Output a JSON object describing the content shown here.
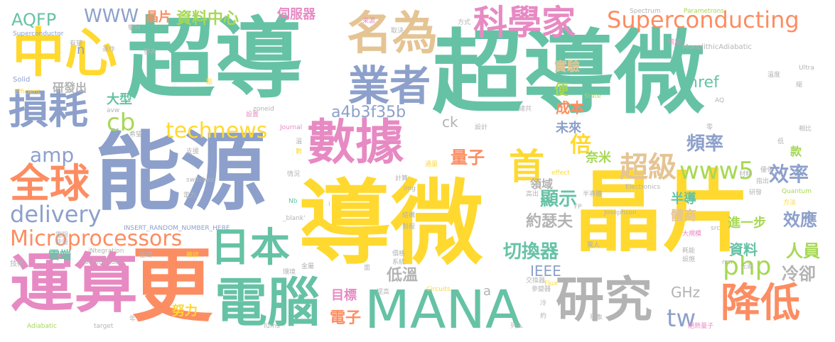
{
  "palette": {
    "teal": "#66c2a5",
    "orange": "#fc8d62",
    "blue": "#8da0cb",
    "pink": "#e78ac3",
    "green": "#a6d854",
    "yellow": "#ffd92f",
    "tan": "#e5c494",
    "gray": "#b3b3b3"
  },
  "words": [
    {
      "text": "超導微",
      "color": "teal"
    },
    {
      "text": "超導",
      "color": "teal"
    },
    {
      "text": "晶片",
      "color": "yellow"
    },
    {
      "text": "導微",
      "color": "yellow"
    },
    {
      "text": "能源",
      "color": "blue"
    },
    {
      "text": "中心",
      "color": "yellow"
    },
    {
      "text": "更",
      "color": "orange"
    },
    {
      "text": "運算",
      "color": "pink"
    },
    {
      "text": "MANA",
      "color": "teal"
    },
    {
      "text": "數據",
      "color": "pink"
    },
    {
      "text": "名為",
      "color": "tan"
    },
    {
      "text": "科學家",
      "color": "pink"
    },
    {
      "text": "電腦",
      "color": "teal"
    },
    {
      "text": "研究",
      "color": "gray"
    },
    {
      "text": "業者",
      "color": "blue"
    },
    {
      "text": "損耗",
      "color": "blue"
    },
    {
      "text": "全球",
      "color": "orange"
    },
    {
      "text": "Superconducting",
      "color": "orange"
    },
    {
      "text": "Microprocessors",
      "color": "orange"
    },
    {
      "text": "降低",
      "color": "orange"
    },
    {
      "text": "日本",
      "color": "teal"
    },
    {
      "text": "technews",
      "color": "yellow"
    },
    {
      "text": "delivery",
      "color": "blue"
    },
    {
      "text": "首",
      "color": "yellow"
    },
    {
      "text": "www5",
      "color": "green"
    },
    {
      "text": "超級",
      "color": "tan"
    },
    {
      "text": "倍",
      "color": "yellow"
    },
    {
      "text": "cb",
      "color": "green"
    },
    {
      "text": "amp",
      "color": "blue"
    },
    {
      "text": "php",
      "color": "green"
    },
    {
      "text": "tw",
      "color": "blue"
    },
    {
      "text": "WWW",
      "color": "blue"
    },
    {
      "text": "AQFP",
      "color": "teal"
    },
    {
      "text": "資料中心",
      "color": "green"
    },
    {
      "text": "晶片",
      "color": "orange"
    },
    {
      "text": "伺服器",
      "color": "pink"
    },
    {
      "text": "效率",
      "color": "blue"
    },
    {
      "text": "量子",
      "color": "orange"
    },
    {
      "text": "頻率",
      "color": "blue"
    },
    {
      "text": "a4b3f35b",
      "color": "blue"
    },
    {
      "text": "切換器",
      "color": "teal"
    },
    {
      "text": "顯示",
      "color": "teal"
    },
    {
      "text": "約瑟夫",
      "color": "gray"
    },
    {
      "text": "資料",
      "color": "teal"
    },
    {
      "text": "效應",
      "color": "blue"
    },
    {
      "text": "人員",
      "color": "green"
    },
    {
      "text": "冷卻",
      "color": "gray"
    },
    {
      "text": "成本",
      "color": "orange"
    },
    {
      "text": "未來",
      "color": "blue"
    },
    {
      "text": "實驗",
      "color": "tan"
    },
    {
      "text": "便",
      "color": "green"
    },
    {
      "text": "大型",
      "color": "teal"
    },
    {
      "text": "研發出",
      "color": "gray"
    },
    {
      "text": "n",
      "color": "blue"
    },
    {
      "text": "href",
      "color": "teal"
    },
    {
      "text": "低溫",
      "color": "gray"
    },
    {
      "text": "電子",
      "color": "orange"
    },
    {
      "text": "目標",
      "color": "pink"
    },
    {
      "text": "努力",
      "color": "yellow"
    },
    {
      "text": "IEEE",
      "color": "blue"
    },
    {
      "text": "GHz",
      "color": "gray"
    },
    {
      "text": "雲端",
      "color": "teal"
    },
    {
      "text": "進一步",
      "color": "green"
    },
    {
      "text": "半導",
      "color": "teal"
    },
    {
      "text": "體商",
      "color": "tan"
    },
    {
      "text": "領域",
      "color": "gray"
    },
    {
      "text": "奈米",
      "color": "green"
    },
    {
      "text": "款",
      "color": "green"
    },
    {
      "text": "ck",
      "color": "gray"
    },
    {
      "text": "a",
      "color": "gray"
    },
    {
      "text": "Spectrum",
      "color": "gray"
    },
    {
      "text": "Parametrons",
      "color": "green"
    },
    {
      "text": "MonolithicAdiabatic",
      "color": "gray"
    },
    {
      "text": "Superconductor",
      "color": "blue"
    },
    {
      "text": "Solid",
      "color": "blue"
    },
    {
      "text": "Efficient",
      "color": "yellow"
    },
    {
      "text": "State",
      "color": "green"
    },
    {
      "text": "Josephson",
      "color": "gray"
    },
    {
      "text": "Quantum",
      "color": "green"
    },
    {
      "text": "Electronics",
      "color": "gray"
    },
    {
      "text": "effect",
      "color": "yellow"
    },
    {
      "text": "switches",
      "color": "gray"
    },
    {
      "text": "INSERT_RANDOM_NUMBER_HERE",
      "color": "blue"
    },
    {
      "text": "_blank'",
      "color": "gray"
    },
    {
      "text": "iNtegration",
      "color": "gray"
    },
    {
      "text": "Architecture",
      "color": "gray"
    },
    {
      "text": "Circuits",
      "color": "yellow"
    },
    {
      "text": "Adiabatic",
      "color": "green"
    },
    {
      "text": "target",
      "color": "gray"
    },
    {
      "text": "Turns",
      "color": "gray"
    },
    {
      "text": "Flux",
      "color": "yellow"
    },
    {
      "text": "zoneid",
      "color": "gray"
    },
    {
      "text": "Journal",
      "color": "pink"
    },
    {
      "text": "avw",
      "color": "gray"
    },
    {
      "text": "src",
      "color": "gray"
    },
    {
      "text": "nm",
      "color": "gray"
    },
    {
      "text": "FP",
      "color": "gray"
    },
    {
      "text": "Nb",
      "color": "teal"
    },
    {
      "text": "img",
      "color": "gray"
    },
    {
      "text": "AQ",
      "color": "gray"
    },
    {
      "text": "Ultra",
      "color": "gray"
    },
    {
      "text": "技術",
      "color": "gray"
    },
    {
      "text": "能量",
      "color": "gray"
    },
    {
      "text": "提高",
      "color": "gray"
    },
    {
      "text": "取決",
      "color": "gray"
    },
    {
      "text": "來源",
      "color": "pink"
    },
    {
      "text": "方式",
      "color": "gray"
    },
    {
      "text": "增加",
      "color": "pink"
    },
    {
      "text": "溫度",
      "color": "gray"
    },
    {
      "text": "相比",
      "color": "gray"
    },
    {
      "text": "優化",
      "color": "gray"
    },
    {
      "text": "材料",
      "color": "gray"
    },
    {
      "text": "研發",
      "color": "gray"
    },
    {
      "text": "方法",
      "color": "yellow"
    },
    {
      "text": "指出",
      "color": "gray"
    },
    {
      "text": "高出",
      "color": "gray"
    },
    {
      "text": "半導體",
      "color": "gray"
    },
    {
      "text": "大規模",
      "color": "pink"
    },
    {
      "text": "驚人",
      "color": "gray"
    },
    {
      "text": "耗能",
      "color": "gray"
    },
    {
      "text": "設施",
      "color": "gray"
    },
    {
      "text": "先進",
      "color": "gray"
    },
    {
      "text": "交換器",
      "color": "gray"
    },
    {
      "text": "參變器",
      "color": "gray"
    },
    {
      "text": "絕熱量子",
      "color": "pink"
    },
    {
      "text": "現象",
      "color": "gray"
    },
    {
      "text": "列入",
      "color": "gray"
    },
    {
      "text": "約",
      "color": "gray"
    },
    {
      "text": "冷",
      "color": "gray"
    },
    {
      "text": "價格",
      "color": "gray"
    },
    {
      "text": "系統",
      "color": "gray"
    },
    {
      "text": "結構",
      "color": "gray"
    },
    {
      "text": "製程",
      "color": "gray"
    },
    {
      "text": "金屬",
      "color": "gray"
    },
    {
      "text": "環境",
      "color": "gray"
    },
    {
      "text": "雜誌",
      "color": "yellow"
    },
    {
      "text": "基礎",
      "color": "gray"
    },
    {
      "text": "電阻",
      "color": "gray"
    },
    {
      "text": "有望",
      "color": "gray"
    },
    {
      "text": "運作",
      "color": "gray"
    },
    {
      "text": "發表",
      "color": "gray"
    },
    {
      "text": "攀升",
      "color": "gray"
    },
    {
      "text": "設置",
      "color": "pink"
    },
    {
      "text": "希望",
      "color": "gray"
    },
    {
      "text": "支援",
      "color": "gray"
    },
    {
      "text": "情況",
      "color": "gray"
    },
    {
      "text": "計算",
      "color": "gray"
    },
    {
      "text": "通量",
      "color": "yellow"
    },
    {
      "text": "電力",
      "color": "gray"
    },
    {
      "text": "點",
      "color": "yellow"
    },
    {
      "text": "數",
      "color": "yellow"
    },
    {
      "text": "溫",
      "color": "gray"
    },
    {
      "text": "設計",
      "color": "gray"
    },
    {
      "text": "總共",
      "color": "gray"
    },
    {
      "text": "零",
      "color": "gray"
    },
    {
      "text": "縮",
      "color": "gray"
    },
    {
      "text": "低",
      "color": "gray"
    },
    {
      "text": "年",
      "color": "gray"
    },
    {
      "text": "面",
      "color": "gray"
    },
    {
      "text": "i",
      "color": "gray"
    }
  ]
}
